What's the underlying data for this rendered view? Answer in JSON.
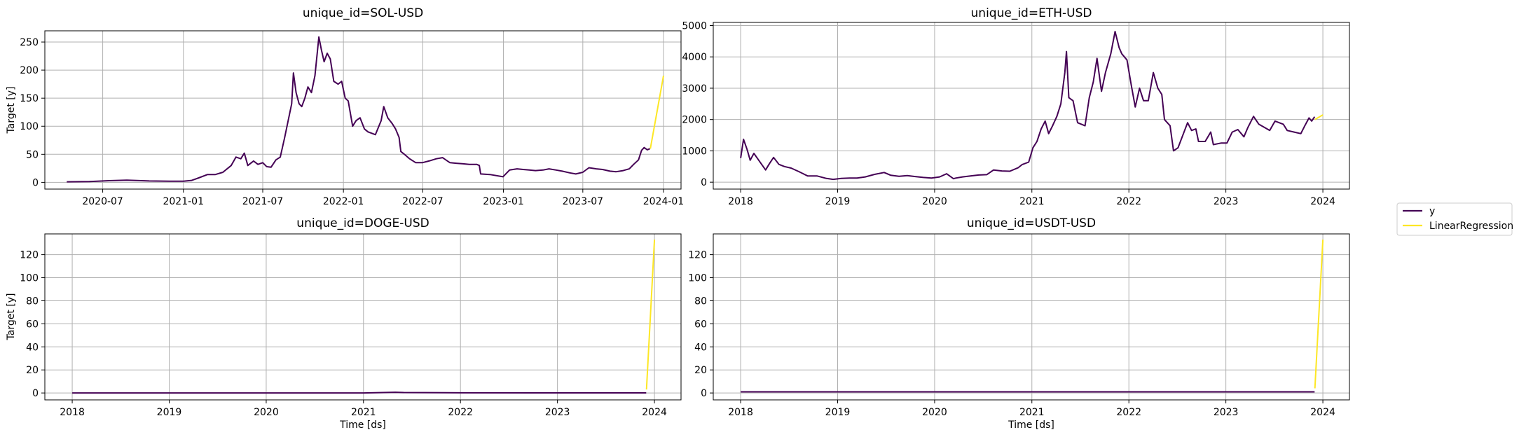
{
  "legend": {
    "items": [
      {
        "label": "y",
        "color": "#440154"
      },
      {
        "label": "LinearRegression",
        "color": "#fde725"
      }
    ]
  },
  "colors": {
    "y": "#440154",
    "forecast": "#fde725",
    "grid": "#b0b0b0"
  },
  "chart_data": [
    {
      "type": "line",
      "title": "unique_id=SOL-USD",
      "xlabel": "",
      "ylabel": "Target [y]",
      "x_ticks": [
        "2020-07",
        "2021-01",
        "2021-07",
        "2022-01",
        "2022-07",
        "2023-01",
        "2023-07",
        "2024-01"
      ],
      "y_ticks": [
        0,
        50,
        100,
        150,
        200,
        250
      ],
      "xlim": [
        "2020-02-20",
        "2024-02-10"
      ],
      "ylim": [
        -12,
        270
      ],
      "grid": true,
      "series": [
        {
          "name": "y",
          "points": [
            [
              "2020-04-10",
              1
            ],
            [
              "2020-06-01",
              1.5
            ],
            [
              "2020-07-15",
              3
            ],
            [
              "2020-08-25",
              4
            ],
            [
              "2020-10-15",
              2.5
            ],
            [
              "2020-12-01",
              2
            ],
            [
              "2021-01-01",
              2
            ],
            [
              "2021-01-20",
              3.5
            ],
            [
              "2021-02-05",
              8
            ],
            [
              "2021-02-25",
              14
            ],
            [
              "2021-03-15",
              14
            ],
            [
              "2021-04-01",
              18
            ],
            [
              "2021-04-20",
              30
            ],
            [
              "2021-05-01",
              45
            ],
            [
              "2021-05-12",
              42
            ],
            [
              "2021-05-20",
              52
            ],
            [
              "2021-05-28",
              30
            ],
            [
              "2021-06-10",
              38
            ],
            [
              "2021-06-20",
              32
            ],
            [
              "2021-07-01",
              35
            ],
            [
              "2021-07-10",
              28
            ],
            [
              "2021-07-20",
              27
            ],
            [
              "2021-07-31",
              40
            ],
            [
              "2021-08-10",
              45
            ],
            [
              "2021-08-20",
              80
            ],
            [
              "2021-08-28",
              110
            ],
            [
              "2021-09-05",
              140
            ],
            [
              "2021-09-09",
              195
            ],
            [
              "2021-09-15",
              160
            ],
            [
              "2021-09-22",
              140
            ],
            [
              "2021-09-28",
              135
            ],
            [
              "2021-10-05",
              150
            ],
            [
              "2021-10-12",
              170
            ],
            [
              "2021-10-20",
              160
            ],
            [
              "2021-10-28",
              190
            ],
            [
              "2021-11-06",
              259
            ],
            [
              "2021-11-12",
              235
            ],
            [
              "2021-11-18",
              215
            ],
            [
              "2021-11-25",
              230
            ],
            [
              "2021-12-02",
              220
            ],
            [
              "2021-12-10",
              180
            ],
            [
              "2021-12-20",
              175
            ],
            [
              "2021-12-28",
              180
            ],
            [
              "2022-01-05",
              150
            ],
            [
              "2022-01-12",
              145
            ],
            [
              "2022-01-22",
              100
            ],
            [
              "2022-01-30",
              110
            ],
            [
              "2022-02-08",
              115
            ],
            [
              "2022-02-18",
              95
            ],
            [
              "2022-02-26",
              90
            ],
            [
              "2022-03-05",
              88
            ],
            [
              "2022-03-15",
              85
            ],
            [
              "2022-03-28",
              110
            ],
            [
              "2022-04-03",
              135
            ],
            [
              "2022-04-12",
              115
            ],
            [
              "2022-04-22",
              105
            ],
            [
              "2022-04-30",
              95
            ],
            [
              "2022-05-08",
              80
            ],
            [
              "2022-05-12",
              55
            ],
            [
              "2022-05-20",
              50
            ],
            [
              "2022-06-01",
              42
            ],
            [
              "2022-06-15",
              35
            ],
            [
              "2022-06-30",
              35
            ],
            [
              "2022-07-15",
              38
            ],
            [
              "2022-08-01",
              42
            ],
            [
              "2022-08-15",
              44
            ],
            [
              "2022-09-01",
              35
            ],
            [
              "2022-09-15",
              34
            ],
            [
              "2022-10-01",
              33
            ],
            [
              "2022-10-15",
              32
            ],
            [
              "2022-11-01",
              32
            ],
            [
              "2022-11-07",
              30
            ],
            [
              "2022-11-10",
              15
            ],
            [
              "2022-12-01",
              14
            ],
            [
              "2022-12-31",
              10
            ],
            [
              "2023-01-15",
              22
            ],
            [
              "2023-02-01",
              24
            ],
            [
              "2023-02-15",
              23
            ],
            [
              "2023-03-01",
              22
            ],
            [
              "2023-03-15",
              21
            ],
            [
              "2023-04-01",
              22
            ],
            [
              "2023-04-15",
              24
            ],
            [
              "2023-05-01",
              22
            ],
            [
              "2023-05-15",
              20
            ],
            [
              "2023-06-01",
              17
            ],
            [
              "2023-06-15",
              15
            ],
            [
              "2023-07-01",
              18
            ],
            [
              "2023-07-15",
              26
            ],
            [
              "2023-08-01",
              24
            ],
            [
              "2023-08-15",
              23
            ],
            [
              "2023-09-01",
              20
            ],
            [
              "2023-09-15",
              19
            ],
            [
              "2023-10-01",
              21
            ],
            [
              "2023-10-15",
              24
            ],
            [
              "2023-10-25",
              32
            ],
            [
              "2023-11-05",
              40
            ],
            [
              "2023-11-12",
              57
            ],
            [
              "2023-11-18",
              62
            ],
            [
              "2023-11-25",
              58
            ],
            [
              "2023-12-01",
              60
            ]
          ]
        },
        {
          "name": "LinearRegression",
          "points": [
            [
              "2023-12-02",
              60
            ],
            [
              "2024-01-01",
              190
            ]
          ]
        }
      ]
    },
    {
      "type": "line",
      "title": "unique_id=ETH-USD",
      "xlabel": "",
      "ylabel": "",
      "x_ticks": [
        "2018",
        "2019",
        "2020",
        "2021",
        "2022",
        "2023",
        "2024"
      ],
      "y_ticks": [
        0,
        1000,
        2000,
        3000,
        4000,
        5000
      ],
      "xlim": [
        "2017-09-20",
        "2024-04-10"
      ],
      "ylim": [
        -220,
        5100
      ],
      "grid": true,
      "series": [
        {
          "name": "y",
          "points": [
            [
              "2018-01-01",
              770
            ],
            [
              "2018-01-12",
              1370
            ],
            [
              "2018-01-25",
              1050
            ],
            [
              "2018-02-06",
              700
            ],
            [
              "2018-02-20",
              920
            ],
            [
              "2018-03-10",
              700
            ],
            [
              "2018-04-05",
              390
            ],
            [
              "2018-04-20",
              600
            ],
            [
              "2018-05-05",
              790
            ],
            [
              "2018-05-25",
              570
            ],
            [
              "2018-06-15",
              500
            ],
            [
              "2018-07-10",
              450
            ],
            [
              "2018-08-10",
              330
            ],
            [
              "2018-09-10",
              200
            ],
            [
              "2018-10-15",
              200
            ],
            [
              "2018-11-20",
              120
            ],
            [
              "2018-12-15",
              90
            ],
            [
              "2019-01-15",
              120
            ],
            [
              "2019-02-15",
              130
            ],
            [
              "2019-03-15",
              130
            ],
            [
              "2019-04-15",
              170
            ],
            [
              "2019-05-20",
              250
            ],
            [
              "2019-06-25",
              310
            ],
            [
              "2019-07-20",
              220
            ],
            [
              "2019-08-20",
              190
            ],
            [
              "2019-09-20",
              210
            ],
            [
              "2019-10-20",
              180
            ],
            [
              "2019-11-20",
              150
            ],
            [
              "2019-12-20",
              130
            ],
            [
              "2020-01-20",
              170
            ],
            [
              "2020-02-15",
              270
            ],
            [
              "2020-03-12",
              110
            ],
            [
              "2020-03-20",
              130
            ],
            [
              "2020-04-15",
              170
            ],
            [
              "2020-05-15",
              200
            ],
            [
              "2020-06-15",
              230
            ],
            [
              "2020-07-15",
              240
            ],
            [
              "2020-08-10",
              390
            ],
            [
              "2020-09-10",
              360
            ],
            [
              "2020-10-10",
              350
            ],
            [
              "2020-11-10",
              460
            ],
            [
              "2020-11-25",
              560
            ],
            [
              "2020-12-20",
              640
            ],
            [
              "2021-01-05",
              1100
            ],
            [
              "2021-01-20",
              1300
            ],
            [
              "2021-02-05",
              1700
            ],
            [
              "2021-02-20",
              1950
            ],
            [
              "2021-03-05",
              1550
            ],
            [
              "2021-03-20",
              1800
            ],
            [
              "2021-04-05",
              2100
            ],
            [
              "2021-04-20",
              2500
            ],
            [
              "2021-05-05",
              3500
            ],
            [
              "2021-05-11",
              4170
            ],
            [
              "2021-05-20",
              2700
            ],
            [
              "2021-06-05",
              2600
            ],
            [
              "2021-06-22",
              1900
            ],
            [
              "2021-07-20",
              1800
            ],
            [
              "2021-08-05",
              2700
            ],
            [
              "2021-08-20",
              3200
            ],
            [
              "2021-09-03",
              3950
            ],
            [
              "2021-09-20",
              2900
            ],
            [
              "2021-10-05",
              3500
            ],
            [
              "2021-10-25",
              4100
            ],
            [
              "2021-11-10",
              4810
            ],
            [
              "2021-11-25",
              4300
            ],
            [
              "2021-12-05",
              4100
            ],
            [
              "2021-12-25",
              3900
            ],
            [
              "2022-01-10",
              3100
            ],
            [
              "2022-01-25",
              2400
            ],
            [
              "2022-02-10",
              3000
            ],
            [
              "2022-02-25",
              2600
            ],
            [
              "2022-03-15",
              2600
            ],
            [
              "2022-04-03",
              3500
            ],
            [
              "2022-04-20",
              3000
            ],
            [
              "2022-05-05",
              2800
            ],
            [
              "2022-05-15",
              2000
            ],
            [
              "2022-06-05",
              1800
            ],
            [
              "2022-06-18",
              1000
            ],
            [
              "2022-07-05",
              1100
            ],
            [
              "2022-08-10",
              1900
            ],
            [
              "2022-08-25",
              1650
            ],
            [
              "2022-09-10",
              1700
            ],
            [
              "2022-09-20",
              1300
            ],
            [
              "2022-10-15",
              1300
            ],
            [
              "2022-11-05",
              1600
            ],
            [
              "2022-11-15",
              1200
            ],
            [
              "2022-12-15",
              1250
            ],
            [
              "2023-01-05",
              1250
            ],
            [
              "2023-01-25",
              1600
            ],
            [
              "2023-02-15",
              1680
            ],
            [
              "2023-03-10",
              1450
            ],
            [
              "2023-03-25",
              1750
            ],
            [
              "2023-04-15",
              2100
            ],
            [
              "2023-05-05",
              1850
            ],
            [
              "2023-06-15",
              1650
            ],
            [
              "2023-07-05",
              1950
            ],
            [
              "2023-08-05",
              1850
            ],
            [
              "2023-08-20",
              1650
            ],
            [
              "2023-09-15",
              1600
            ],
            [
              "2023-10-10",
              1550
            ],
            [
              "2023-10-25",
              1800
            ],
            [
              "2023-11-10",
              2050
            ],
            [
              "2023-11-20",
              1950
            ],
            [
              "2023-12-01",
              2090
            ]
          ]
        },
        {
          "name": "LinearRegression",
          "points": [
            [
              "2023-12-02",
              2000
            ],
            [
              "2024-01-01",
              2150
            ]
          ]
        }
      ]
    },
    {
      "type": "line",
      "title": "unique_id=DOGE-USD",
      "xlabel": "Time [ds]",
      "ylabel": "Target [y]",
      "x_ticks": [
        "2018",
        "2019",
        "2020",
        "2021",
        "2022",
        "2023",
        "2024"
      ],
      "y_ticks": [
        0,
        20,
        40,
        60,
        80,
        100,
        120
      ],
      "xlim": [
        "2017-09-20",
        "2024-04-10"
      ],
      "ylim": [
        -6,
        138
      ],
      "grid": true,
      "series": [
        {
          "name": "y",
          "points": [
            [
              "2018-01-01",
              0.01
            ],
            [
              "2019-01-01",
              0.003
            ],
            [
              "2020-01-01",
              0.002
            ],
            [
              "2021-01-01",
              0.01
            ],
            [
              "2021-05-01",
              0.6
            ],
            [
              "2021-06-01",
              0.35
            ],
            [
              "2022-01-01",
              0.15
            ],
            [
              "2023-01-01",
              0.08
            ],
            [
              "2023-12-01",
              0.09
            ]
          ]
        },
        {
          "name": "LinearRegression",
          "points": [
            [
              "2023-12-02",
              3
            ],
            [
              "2024-01-01",
              133
            ]
          ]
        }
      ]
    },
    {
      "type": "line",
      "title": "unique_id=USDT-USD",
      "xlabel": "Time [ds]",
      "ylabel": "",
      "x_ticks": [
        "2018",
        "2019",
        "2020",
        "2021",
        "2022",
        "2023",
        "2024"
      ],
      "y_ticks": [
        0,
        20,
        40,
        60,
        80,
        100,
        120
      ],
      "xlim": [
        "2017-09-20",
        "2024-04-10"
      ],
      "ylim": [
        -6,
        138
      ],
      "grid": true,
      "series": [
        {
          "name": "y",
          "points": [
            [
              "2018-01-01",
              1
            ],
            [
              "2023-12-01",
              1
            ]
          ]
        },
        {
          "name": "LinearRegression",
          "points": [
            [
              "2023-12-02",
              4
            ],
            [
              "2024-01-01",
              133
            ]
          ]
        }
      ]
    }
  ]
}
